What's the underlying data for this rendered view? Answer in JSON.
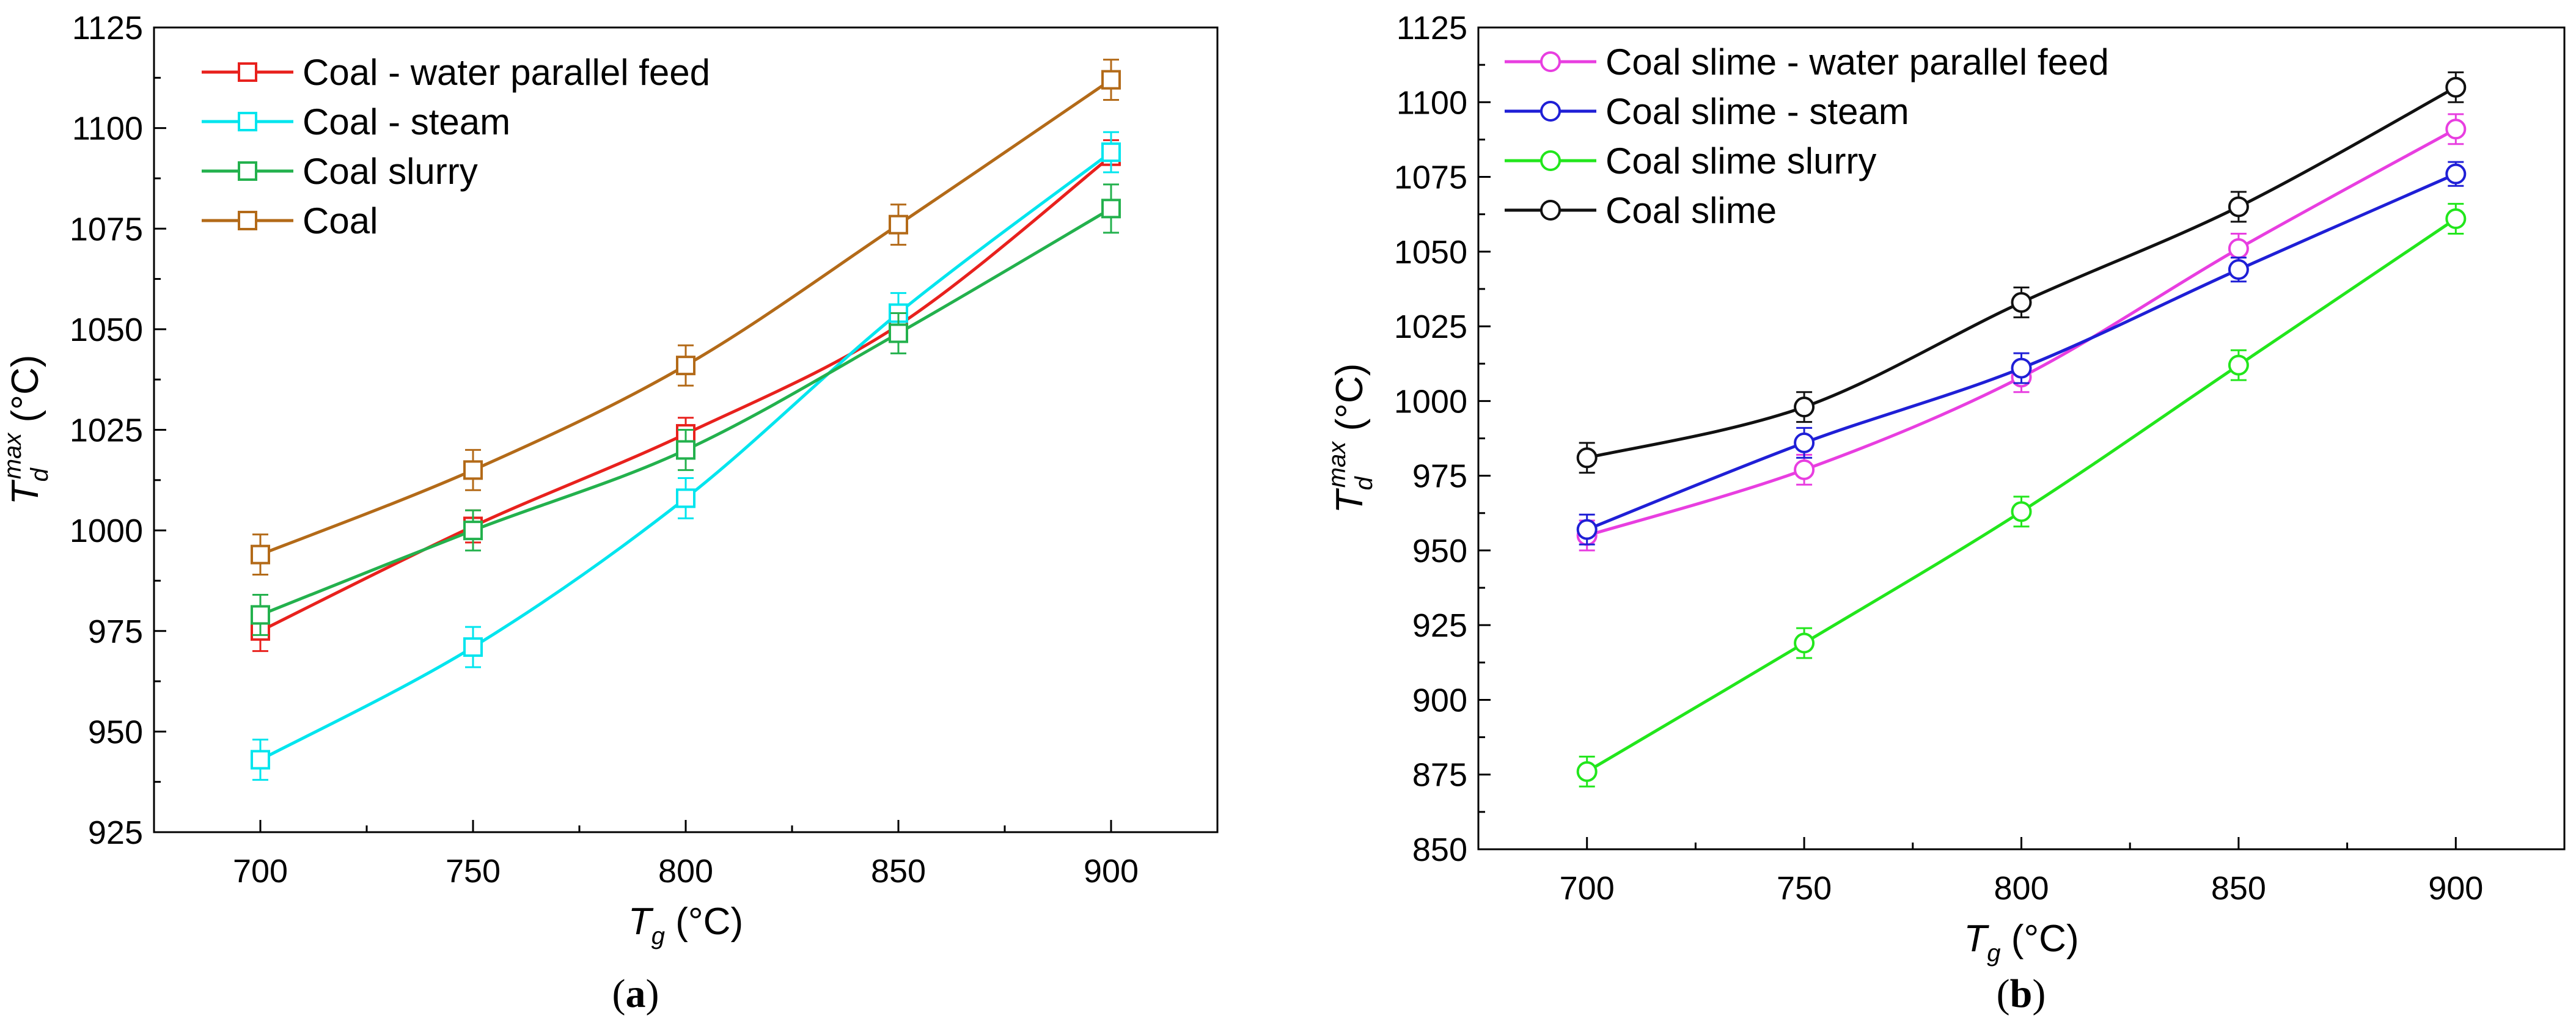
{
  "chart_data": [
    {
      "type": "line",
      "panel_label": "a",
      "x": [
        700,
        750,
        800,
        850,
        900
      ],
      "xlim": [
        675,
        925
      ],
      "ylim": [
        925,
        1125
      ],
      "xticks": [
        "700",
        "750",
        "800",
        "850",
        "900"
      ],
      "yticks": [
        "925",
        "950",
        "975",
        "1000",
        "1025",
        "1050",
        "1075",
        "1100",
        "1125"
      ],
      "xlabel": {
        "main": "T",
        "sub": "g",
        "unit": " (°C)"
      },
      "ylabel": {
        "main": "T",
        "sub": "d",
        "sup": "max",
        "unit": " (°C)"
      },
      "marker": "square",
      "legend_position": "top-left",
      "series": [
        {
          "name": "Coal - water parallel feed",
          "color": "#e8211d",
          "values": [
            975,
            1001,
            1024,
            1051,
            1093
          ],
          "error": [
            5,
            4,
            4,
            4,
            4
          ]
        },
        {
          "name": "Coal - steam",
          "color": "#00e5ee",
          "values": [
            943,
            971,
            1008,
            1054,
            1094
          ],
          "error": [
            5,
            5,
            5,
            5,
            5
          ]
        },
        {
          "name": "Coal slurry",
          "color": "#23b14d",
          "values": [
            979,
            1000,
            1020,
            1049,
            1080
          ],
          "error": [
            5,
            5,
            5,
            5,
            6
          ]
        },
        {
          "name": "Coal",
          "color": "#b36a18",
          "values": [
            994,
            1015,
            1041,
            1076,
            1112
          ],
          "error": [
            5,
            5,
            5,
            5,
            5
          ]
        }
      ]
    },
    {
      "type": "line",
      "panel_label": "b",
      "x": [
        700,
        750,
        800,
        850,
        900
      ],
      "xlim": [
        675,
        925
      ],
      "ylim": [
        850,
        1125
      ],
      "xticks": [
        "700",
        "750",
        "800",
        "850",
        "900"
      ],
      "yticks": [
        "850",
        "875",
        "900",
        "925",
        "950",
        "975",
        "1000",
        "1025",
        "1050",
        "1075",
        "1100",
        "1125"
      ],
      "xlabel": {
        "main": "T",
        "sub": "g",
        "unit": " (°C)"
      },
      "ylabel": {
        "main": "T",
        "sub": "d",
        "sup": "max",
        "unit": " (°C)"
      },
      "marker": "circle",
      "legend_position": "top-left",
      "series": [
        {
          "name": "Coal slime - water parallel feed",
          "color": "#e83ee0",
          "values": [
            955,
            977,
            1008,
            1051,
            1091
          ],
          "error": [
            5,
            5,
            5,
            5,
            5
          ]
        },
        {
          "name": "Coal slime - steam",
          "color": "#1f1fd6",
          "values": [
            957,
            986,
            1011,
            1044,
            1076
          ],
          "error": [
            5,
            5,
            5,
            4,
            4
          ]
        },
        {
          "name": "Coal slime slurry",
          "color": "#22e61c",
          "values": [
            876,
            919,
            963,
            1012,
            1061
          ],
          "error": [
            5,
            5,
            5,
            5,
            5
          ]
        },
        {
          "name": "Coal slime",
          "color": "#111111",
          "values": [
            981,
            998,
            1033,
            1065,
            1105
          ],
          "error": [
            5,
            5,
            5,
            5,
            5
          ]
        }
      ]
    }
  ]
}
